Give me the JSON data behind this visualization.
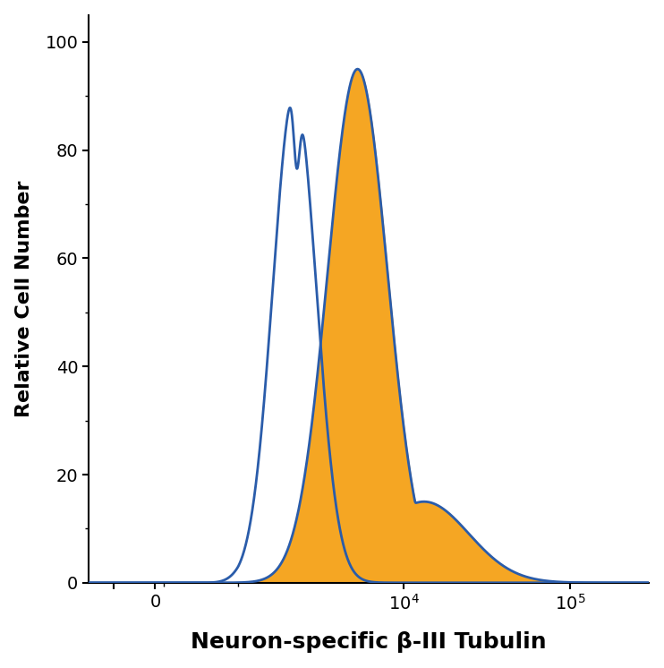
{
  "ylabel": "Relative Cell Number",
  "xlabel": "Neuron-specific β-III Tubulin",
  "ylim": [
    0,
    105
  ],
  "yticks": [
    0,
    20,
    40,
    60,
    80,
    100
  ],
  "blue_color": "#2a5caa",
  "orange_color": "#f5a623",
  "blue_peak_log": 3.34,
  "blue_peak_y": 91,
  "blue_sigma_log": 0.13,
  "orange_peak_log": 3.72,
  "orange_peak_y": 95,
  "orange_sigma_log": 0.18,
  "background_color": "#ffffff",
  "linthresh": 1000,
  "linscale": 0.45,
  "xlim_left": -800,
  "xlim_right": 300000
}
